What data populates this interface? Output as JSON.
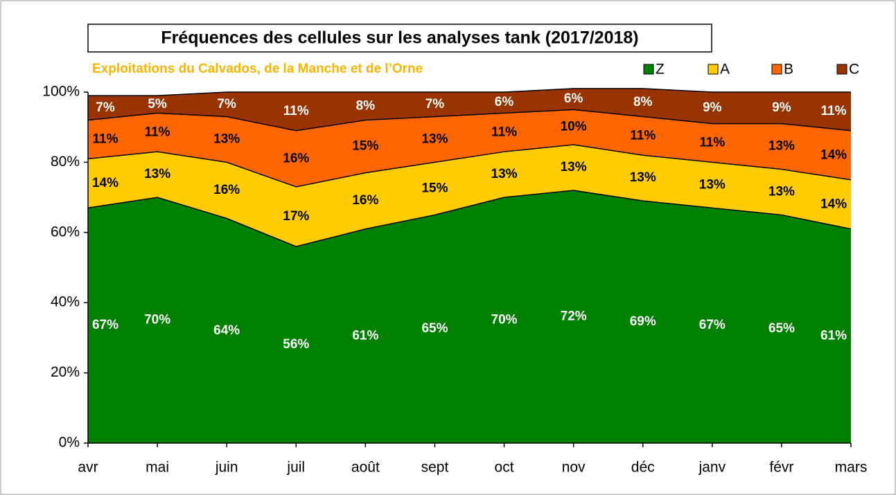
{
  "chart_data": {
    "type": "stacked_area",
    "title": "Fréquences des cellules sur les analyses tank (2017/2018)",
    "subtitle": "Exploitations du Calvados, de la Manche et de l’Orne",
    "categories": [
      "avr",
      "mai",
      "juin",
      "juil",
      "août",
      "sept",
      "oct",
      "nov",
      "déc",
      "janv",
      "févr",
      "mars"
    ],
    "series": [
      {
        "name": "Z",
        "color": "#008000",
        "label_color": "#ffffff",
        "values": [
          67,
          70,
          64,
          56,
          61,
          65,
          70,
          72,
          69,
          67,
          65,
          61
        ],
        "value_labels": [
          "67%",
          "70%",
          "64%",
          "56%",
          "61%",
          "65%",
          "70%",
          "72%",
          "69%",
          "67%",
          "65%",
          "61%"
        ]
      },
      {
        "name": "A",
        "color": "#ffcc00",
        "label_color": "#000000",
        "values": [
          14,
          13,
          16,
          17,
          16,
          15,
          13,
          13,
          13,
          13,
          13,
          14
        ],
        "value_labels": [
          "14%",
          "13%",
          "16%",
          "17%",
          "16%",
          "15%",
          "13%",
          "13%",
          "13%",
          "13%",
          "13%",
          "14%"
        ]
      },
      {
        "name": "B",
        "color": "#ff6600",
        "label_color": "#000000",
        "values": [
          11,
          11,
          13,
          16,
          15,
          13,
          11,
          10,
          11,
          11,
          13,
          14
        ],
        "value_labels": [
          "11%",
          "11%",
          "13%",
          "16%",
          "15%",
          "13%",
          "11%",
          "10%",
          "11%",
          "11%",
          "13%",
          "14%"
        ]
      },
      {
        "name": "C",
        "color": "#993300",
        "label_color": "#ffffff",
        "values": [
          7,
          5,
          7,
          11,
          8,
          7,
          6,
          6,
          8,
          9,
          9,
          11
        ],
        "value_labels": [
          "7%",
          "5%",
          "7%",
          "11%",
          "8%",
          "7%",
          "6%",
          "6%",
          "8%",
          "9%",
          "9%",
          "11%"
        ]
      }
    ],
    "ylim": [
      0,
      100
    ],
    "yticks": [
      {
        "value": 0,
        "label": "0%"
      },
      {
        "value": 20,
        "label": "20%"
      },
      {
        "value": 40,
        "label": "40%"
      },
      {
        "value": 60,
        "label": "60%"
      },
      {
        "value": 80,
        "label": "80%"
      },
      {
        "value": 100,
        "label": "100%"
      }
    ],
    "legend": "top-right"
  }
}
